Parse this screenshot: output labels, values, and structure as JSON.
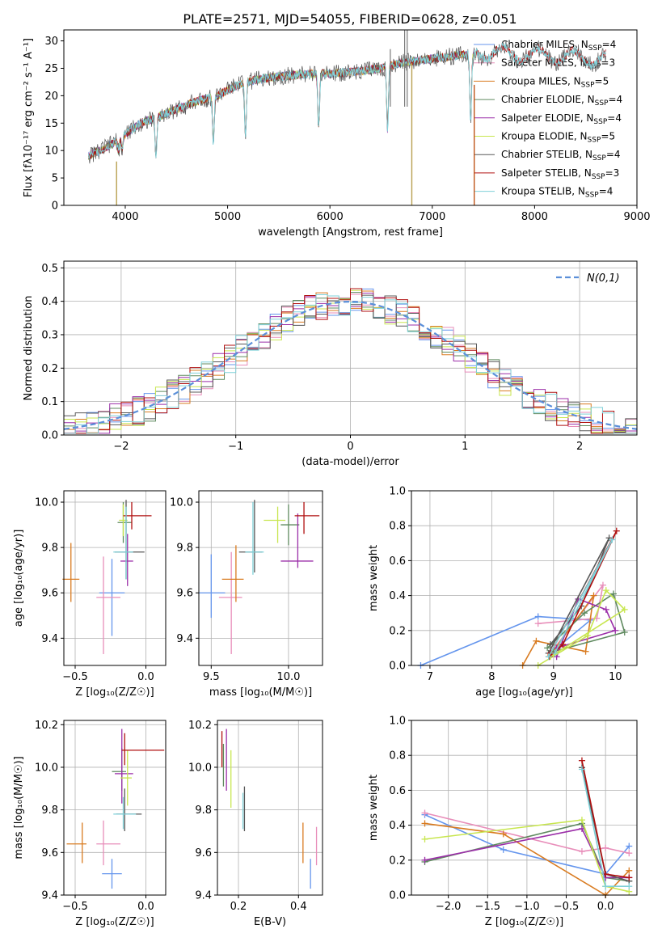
{
  "title": "PLATE=2571, MJD=54055, FIBERID=0628, z=0.051",
  "colors": [
    "#6495ed",
    "#e88eba",
    "#d97b20",
    "#5f8a5f",
    "#9b2ea8",
    "#c8e650",
    "#585858",
    "#b01010",
    "#7fd0d8"
  ],
  "models": [
    {
      "name": "Chabrier MILES",
      "nssp": "4"
    },
    {
      "name": "Salpeter MILES",
      "nssp": "3"
    },
    {
      "name": "Kroupa MILES",
      "nssp": "5"
    },
    {
      "name": "Chabrier ELODIE",
      "nssp": "4"
    },
    {
      "name": "Salpeter ELODIE",
      "nssp": "4"
    },
    {
      "name": "Kroupa ELODIE",
      "nssp": "5"
    },
    {
      "name": "Chabrier STELIB",
      "nssp": "4"
    },
    {
      "name": "Salpeter STELIB",
      "nssp": "3"
    },
    {
      "name": "Kroupa STELIB",
      "nssp": "4"
    }
  ],
  "chart_data": [
    {
      "id": "spectrum",
      "type": "line",
      "xlabel": "wavelength [Angstrom, rest frame]",
      "ylabel": "Flux [fλ10⁻¹⁷ erg cm⁻² s⁻¹ A⁻¹]",
      "xlim": [
        3400,
        9000
      ],
      "ylim": [
        0,
        32
      ],
      "xticks": [
        4000,
        5000,
        6000,
        7000,
        8000,
        9000
      ],
      "yticks": [
        0,
        5,
        10,
        15,
        20,
        25,
        30
      ],
      "grid": false,
      "legend": "right",
      "continuum": {
        "x": [
          3640,
          3750,
          3900,
          4000,
          4150,
          4300,
          4500,
          4700,
          4900,
          5100,
          5300,
          5500,
          5800,
          6000,
          6300,
          6500,
          6700,
          6900,
          7100,
          7300,
          7400
        ],
        "y": [
          9,
          10,
          11.5,
          13,
          15,
          16,
          17.5,
          19,
          20,
          22,
          23,
          23.5,
          24,
          24,
          24.5,
          25,
          26,
          26.5,
          27,
          27.5,
          27.5
        ]
      },
      "notches": [
        [
          3934,
          4
        ],
        [
          3969,
          5
        ],
        [
          4300,
          14
        ],
        [
          4861,
          17
        ],
        [
          5175,
          19
        ],
        [
          5890,
          20
        ],
        [
          6563,
          23
        ],
        [
          7375,
          24
        ]
      ],
      "vlines": [
        [
          3915,
          0,
          8
        ],
        [
          6800,
          0,
          26
        ],
        [
          7410,
          0,
          22
        ]
      ],
      "spikes": [
        [
          6730,
          32
        ],
        [
          6755,
          32
        ],
        [
          6590,
          28.5
        ]
      ]
    },
    {
      "id": "hist",
      "type": "step",
      "xlabel": "(data-model)/error",
      "ylabel": "Normed distribution",
      "xlim": [
        -2.5,
        2.5
      ],
      "ylim": [
        0,
        0.52
      ],
      "xticks": [
        -2,
        -1,
        0,
        1,
        2
      ],
      "yticks": [
        0,
        0.1,
        0.2,
        0.3,
        0.4,
        0.5
      ],
      "grid": true,
      "legend": "top-right",
      "legend_label": "N(0,1)",
      "edges": [
        -2.5,
        -2.4,
        -2.3,
        -2.2,
        -2.1,
        -2.0,
        -1.9,
        -1.8,
        -1.7,
        -1.6,
        -1.5,
        -1.4,
        -1.3,
        -1.2,
        -1.1,
        -1.0,
        -0.9,
        -0.8,
        -0.7,
        -0.6,
        -0.5,
        -0.4,
        -0.3,
        -0.2,
        -0.1,
        0.0,
        0.1,
        0.2,
        0.3,
        0.4,
        0.5,
        0.6,
        0.7,
        0.8,
        0.9,
        1.0,
        1.1,
        1.2,
        1.3,
        1.4,
        1.5,
        1.6,
        1.7,
        1.8,
        1.9,
        2.0,
        2.1,
        2.2,
        2.3,
        2.4,
        2.5
      ],
      "gaussian": {
        "mu": 0,
        "sigma": 1
      }
    },
    {
      "id": "age_z",
      "type": "errorbar",
      "xlabel": "Z [log₁₀(Z/Z☉)]",
      "ylabel": "age  [log₁₀(age/yr)]",
      "xlim": [
        -0.58,
        0.14
      ],
      "ylim": [
        9.28,
        10.05
      ],
      "xticks": [
        -0.5,
        0.0
      ],
      "yticks": [
        9.4,
        9.6,
        9.8,
        10.0
      ],
      "grid": true,
      "points": [
        [
          -0.24,
          9.6,
          0.09,
          0.09,
          0.19,
          0.15
        ],
        [
          -0.3,
          9.58,
          0.05,
          0.12,
          0.25,
          0.18
        ],
        [
          -0.53,
          9.66,
          0.06,
          0.06,
          0.1,
          0.16
        ],
        [
          -0.16,
          9.91,
          0.04,
          0.06,
          0.09,
          0.09
        ],
        [
          -0.13,
          9.74,
          0.05,
          0.04,
          0.11,
          0.12
        ],
        [
          -0.16,
          9.92,
          0.03,
          0.03,
          0.07,
          0.07
        ],
        [
          -0.14,
          9.78,
          0.08,
          0.13,
          0.12,
          0.23
        ],
        [
          -0.1,
          9.94,
          0.06,
          0.14,
          0.06,
          0.06
        ],
        [
          -0.14,
          9.78,
          0.09,
          0.05,
          0.12,
          0.2
        ]
      ]
    },
    {
      "id": "age_mass",
      "type": "errorbar",
      "xlabel": "mass [log₁₀(M/M☉)]",
      "ylabel": "",
      "xlim": [
        9.42,
        10.22
      ],
      "ylim": [
        9.28,
        10.05
      ],
      "xticks": [
        9.5,
        10.0
      ],
      "yticks": [
        9.4,
        9.6,
        9.8,
        10.0
      ],
      "grid": true,
      "points": [
        [
          9.5,
          9.6,
          0.08,
          0.09,
          0.11,
          0.17
        ],
        [
          9.63,
          9.58,
          0.08,
          0.07,
          0.25,
          0.2
        ],
        [
          9.66,
          9.66,
          0.09,
          0.05,
          0.1,
          0.15
        ],
        [
          10.0,
          9.9,
          0.05,
          0.07,
          0.09,
          0.09
        ],
        [
          10.06,
          9.74,
          0.11,
          0.1,
          0.03,
          0.21
        ],
        [
          9.93,
          9.92,
          0.09,
          0.05,
          0.1,
          0.06
        ],
        [
          9.78,
          9.78,
          0.1,
          0.05,
          0.09,
          0.23
        ],
        [
          10.1,
          9.94,
          0.06,
          0.1,
          0.08,
          0.06
        ],
        [
          9.77,
          9.78,
          0.05,
          0.07,
          0.1,
          0.22
        ]
      ]
    },
    {
      "id": "weight_age",
      "type": "line",
      "xlabel": "age  [log₁₀(age/yr)]",
      "ylabel": "mass weight",
      "xlim": [
        6.7,
        10.35
      ],
      "ylim": [
        0,
        1
      ],
      "xticks": [
        7,
        8,
        9,
        10
      ],
      "yticks": [
        0,
        0.2,
        0.4,
        0.6,
        0.8,
        1.0
      ],
      "grid": true,
      "series": [
        {
          "x": [
            6.85,
            8.75,
            9.6,
            8.95
          ],
          "y": [
            0,
            0.28,
            0.26,
            0.07
          ]
        },
        {
          "x": [
            8.75,
            9.7,
            9.8,
            8.95
          ],
          "y": [
            0.24,
            0.27,
            0.46,
            0.07
          ]
        },
        {
          "x": [
            8.5,
            8.72,
            9.52,
            9.65,
            8.95
          ],
          "y": [
            0,
            0.14,
            0.08,
            0.4,
            0.06
          ]
        },
        {
          "x": [
            8.9,
            9.5,
            9.97,
            10.15,
            9.0
          ],
          "y": [
            0.1,
            0.3,
            0.41,
            0.19,
            0.08
          ]
        },
        {
          "x": [
            9.05,
            9.4,
            9.85,
            10.0,
            9.05
          ],
          "y": [
            0.05,
            0.38,
            0.32,
            0.2,
            0.1
          ]
        },
        {
          "x": [
            8.75,
            9.55,
            9.85,
            10.15,
            8.95
          ],
          "y": [
            0,
            0.17,
            0.43,
            0.32,
            0.05
          ]
        },
        {
          "x": [
            8.92,
            9.9,
            9.45,
            8.95
          ],
          "y": [
            0.07,
            0.73,
            0.34,
            0.12
          ]
        },
        {
          "x": [
            8.95,
            10.02,
            9.15,
            8.93
          ],
          "y": [
            0.07,
            0.77,
            0.12,
            0.05
          ]
        },
        {
          "x": [
            8.92,
            9.95,
            9.02
          ],
          "y": [
            0.05,
            0.72,
            0.07
          ]
        }
      ]
    },
    {
      "id": "mass_z",
      "type": "errorbar",
      "xlabel": "Z [log₁₀(Z/Z☉)]",
      "ylabel": "mass [log₁₀(M/M☉)]",
      "xlim": [
        -0.58,
        0.14
      ],
      "ylim": [
        9.4,
        10.22
      ],
      "xticks": [
        -0.5,
        0.0
      ],
      "yticks": [
        9.4,
        9.6,
        9.8,
        10.0,
        10.2
      ],
      "grid": true,
      "points": [
        [
          -0.24,
          9.5,
          0.07,
          0.07,
          0.07,
          0.07
        ],
        [
          -0.3,
          9.64,
          0.05,
          0.12,
          0.1,
          0.11
        ],
        [
          -0.45,
          9.64,
          0.11,
          0.03,
          0.09,
          0.1
        ],
        [
          -0.17,
          9.98,
          0.07,
          0.03,
          0.09,
          0.11
        ],
        [
          -0.17,
          9.97,
          0.05,
          0.08,
          0.14,
          0.21
        ],
        [
          -0.13,
          9.95,
          0.05,
          0.03,
          0.13,
          0.13
        ],
        [
          -0.15,
          9.78,
          0.06,
          0.12,
          0.08,
          0.12
        ],
        [
          -0.15,
          10.08,
          0.02,
          0.28,
          0.07,
          0.08
        ],
        [
          -0.16,
          9.78,
          0.07,
          0.09,
          0.07,
          0.08
        ]
      ]
    },
    {
      "id": "mass_ebv",
      "type": "errorbar",
      "xlabel": "E(B-V)",
      "ylabel": "",
      "xlim": [
        0.13,
        0.48
      ],
      "ylim": [
        9.4,
        10.22
      ],
      "xticks": [
        0.2,
        0.4
      ],
      "yticks": [
        9.4,
        9.6,
        9.8,
        10.0,
        10.2
      ],
      "grid": true,
      "points": [
        [
          0.44,
          9.5,
          0,
          0,
          0.07,
          0.07
        ],
        [
          0.46,
          9.64,
          0,
          0,
          0.1,
          0.08
        ],
        [
          0.415,
          9.64,
          0,
          0,
          0.09,
          0.1
        ],
        [
          0.15,
          10.0,
          0,
          0,
          0.09,
          0.11
        ],
        [
          0.16,
          10.0,
          0,
          0,
          0.11,
          0.18
        ],
        [
          0.175,
          9.95,
          0,
          0,
          0.14,
          0.13
        ],
        [
          0.22,
          9.8,
          0,
          0,
          0.1,
          0.11
        ],
        [
          0.145,
          10.08,
          0,
          0,
          0.08,
          0.09
        ],
        [
          0.215,
          9.79,
          0,
          0,
          0.08,
          0.09
        ]
      ]
    },
    {
      "id": "weight_z",
      "type": "line",
      "xlabel": "Z [log₁₀(Z/Z☉)]",
      "ylabel": "mass weight",
      "xlim": [
        -2.47,
        0.4
      ],
      "ylim": [
        0,
        1
      ],
      "xticks": [
        -2.0,
        -1.5,
        -1.0,
        -0.5,
        0.0
      ],
      "yticks": [
        0,
        0.2,
        0.4,
        0.6,
        0.8,
        1.0
      ],
      "grid": true,
      "series": [
        {
          "x": [
            -2.3,
            -1.3,
            0.0,
            0.3
          ],
          "y": [
            0.46,
            0.26,
            0.12,
            0.28
          ]
        },
        {
          "x": [
            -2.3,
            -0.3,
            0.0,
            0.3
          ],
          "y": [
            0.47,
            0.25,
            0.27,
            0.24
          ]
        },
        {
          "x": [
            -2.3,
            -1.3,
            0.0,
            0.3
          ],
          "y": [
            0.41,
            0.35,
            0.0,
            0.14
          ]
        },
        {
          "x": [
            -2.3,
            -0.3,
            0.0,
            0.3
          ],
          "y": [
            0.19,
            0.41,
            0.1,
            0.08
          ]
        },
        {
          "x": [
            -2.3,
            -0.3,
            0.0,
            0.3
          ],
          "y": [
            0.2,
            0.38,
            0.1,
            0.1
          ]
        },
        {
          "x": [
            -2.3,
            -0.3,
            0.0,
            0.3
          ],
          "y": [
            0.32,
            0.43,
            0.05,
            0.02
          ]
        },
        {
          "x": [
            -0.3,
            0.0,
            0.3
          ],
          "y": [
            0.73,
            0.12,
            0.08
          ]
        },
        {
          "x": [
            -0.3,
            0.0,
            0.3
          ],
          "y": [
            0.77,
            0.12,
            0.1
          ]
        },
        {
          "x": [
            -0.3,
            0.0,
            0.3
          ],
          "y": [
            0.72,
            0.05,
            0.05
          ]
        }
      ]
    }
  ]
}
